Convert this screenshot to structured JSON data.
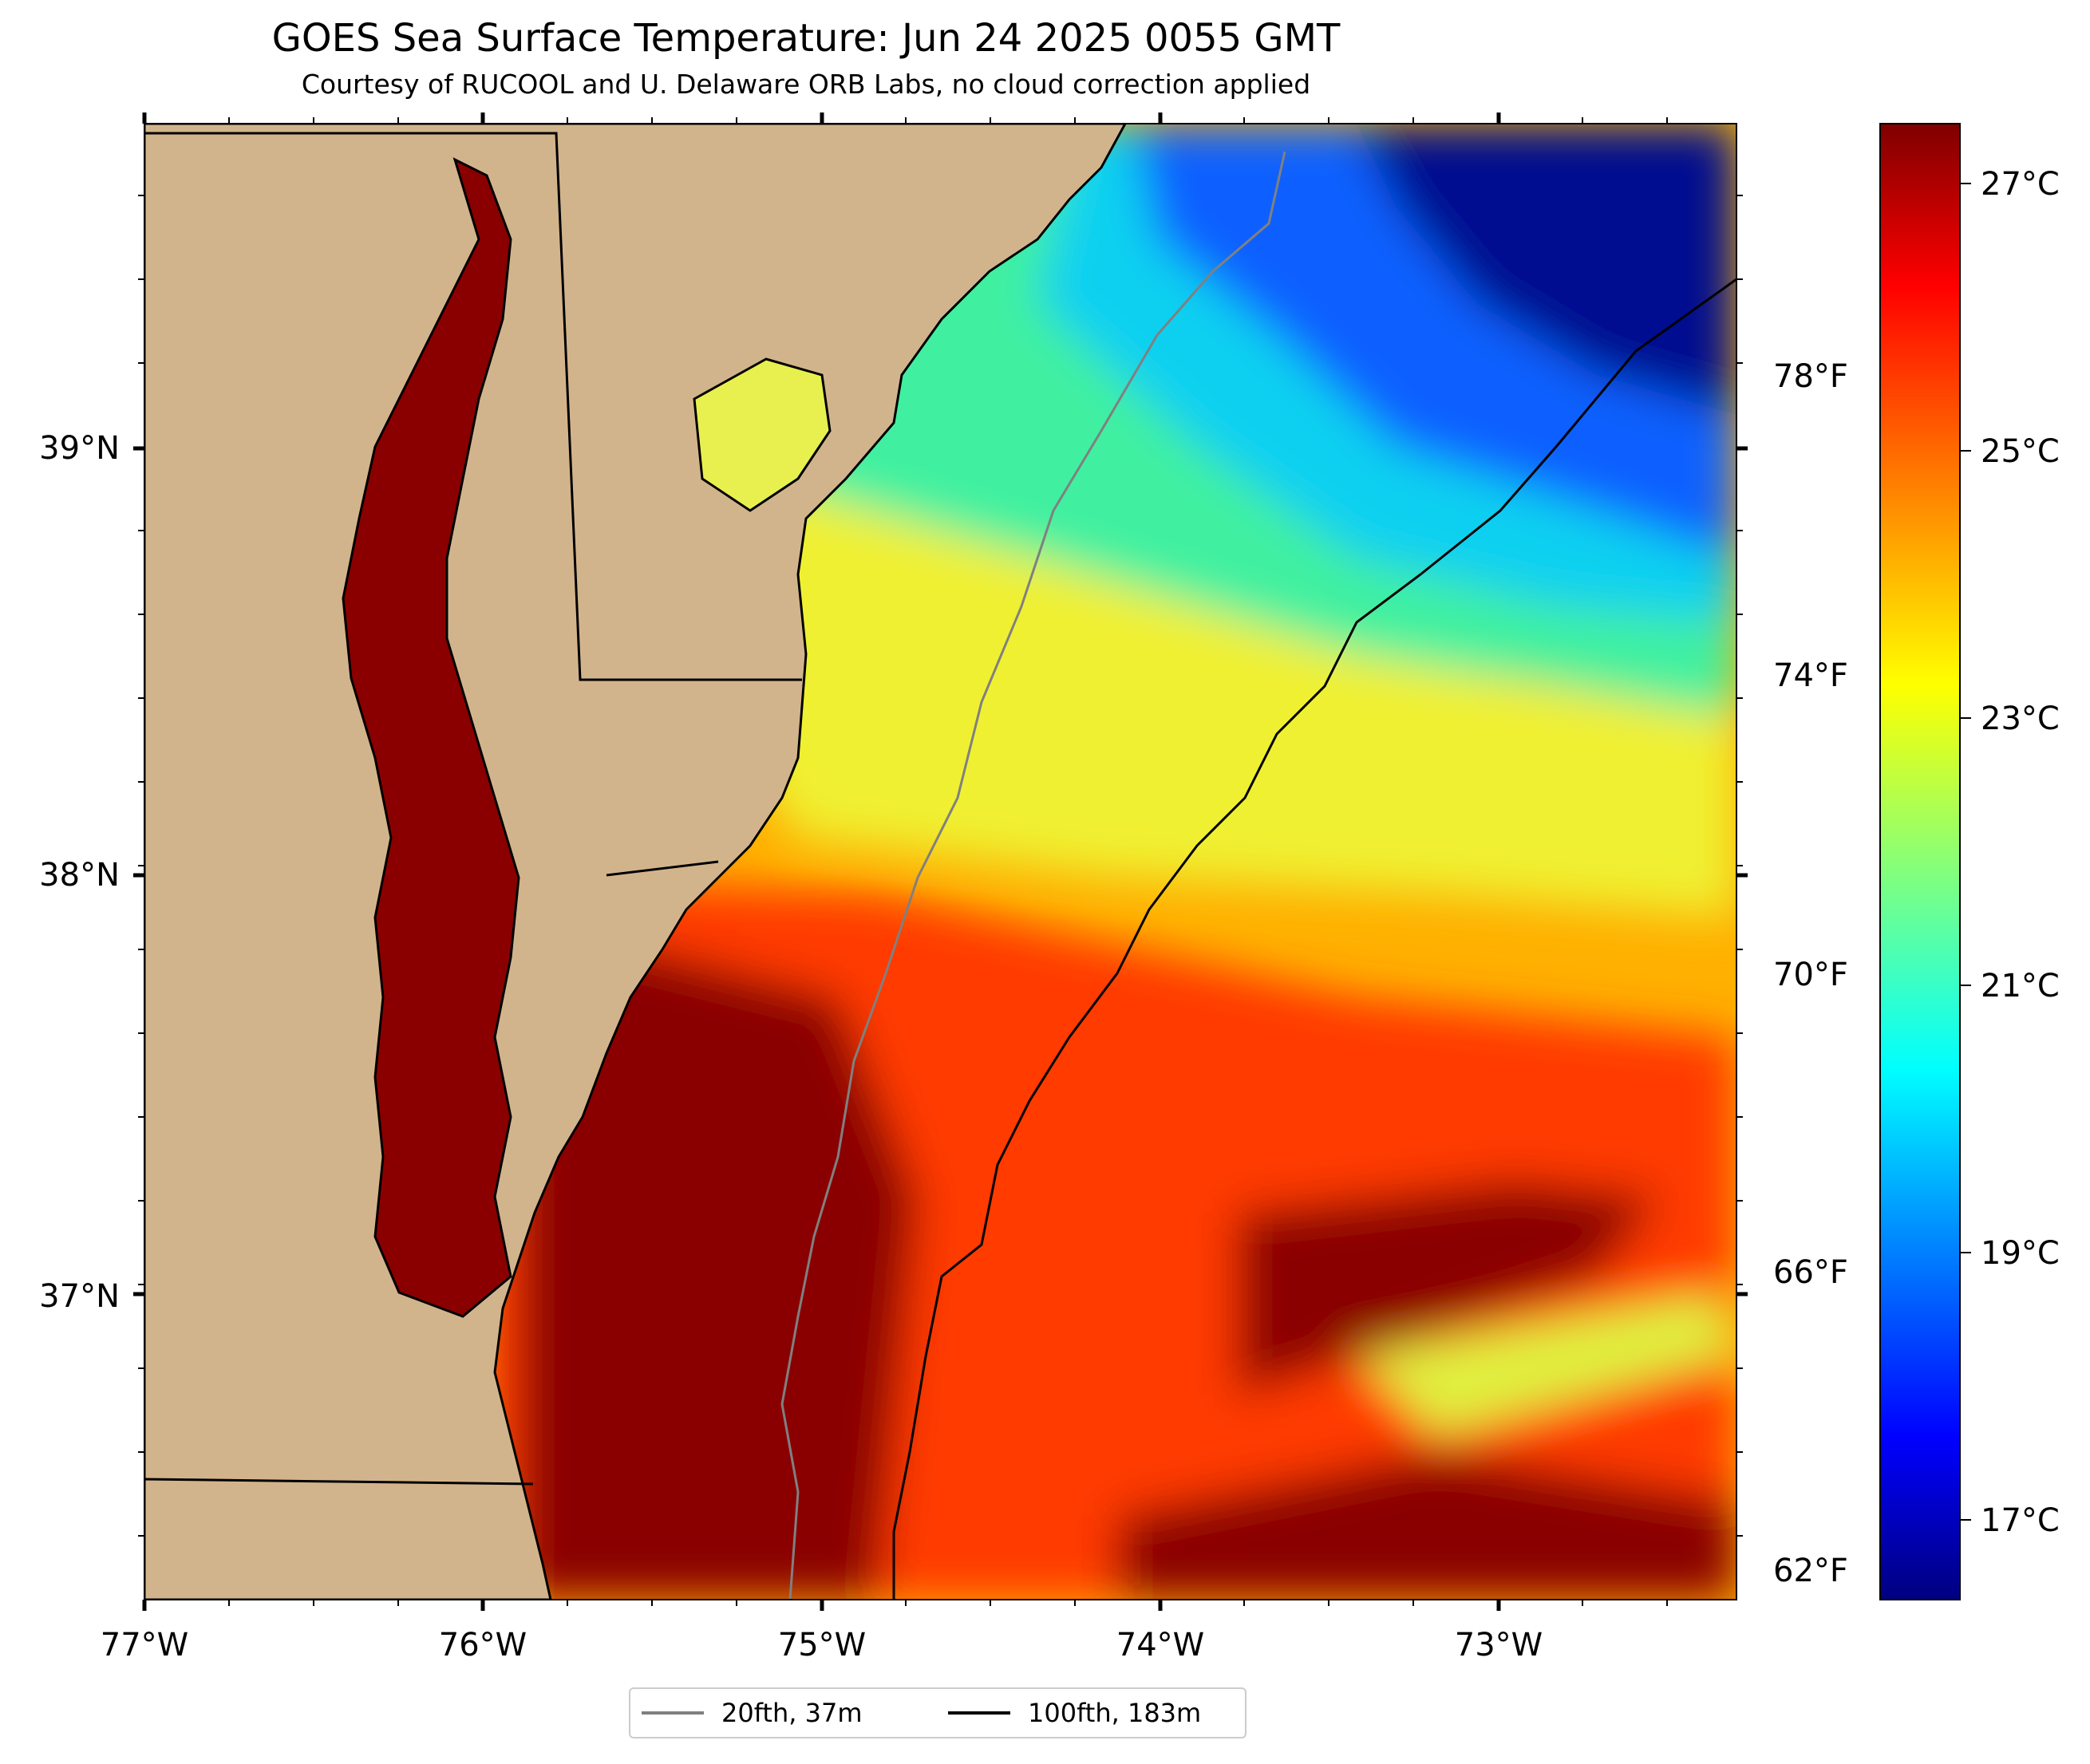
{
  "map": {
    "title": "GOES Sea Surface Temperature: Jun 24 2025 0055 GMT",
    "subtitle": "Courtesy of RUCOOL and U. Delaware ORB Labs, no cloud correction applied",
    "lon_labels": [
      "77°W",
      "76°W",
      "75°W",
      "74°W",
      "73°W"
    ],
    "lat_labels": [
      "39°N",
      "38°N",
      "37°N"
    ],
    "extent": {
      "lon_min": -77.0,
      "lon_max": -72.3,
      "lat_min": 36.24,
      "lat_max": 39.76
    },
    "colors": {
      "land": "#d2b48c",
      "border": "#000000",
      "isobath_20fth": "#808080",
      "isobath_100fth": "#000000"
    }
  },
  "colorbar": {
    "celsius_labels": [
      "27°C",
      "25°C",
      "23°C",
      "21°C",
      "19°C",
      "17°C"
    ],
    "fahrenheit_labels": [
      "78°F",
      "74°F",
      "70°F",
      "66°F",
      "62°F"
    ],
    "range_c": [
      16.3,
      27.4
    ],
    "colormap": "jet"
  },
  "legend": {
    "items": [
      {
        "label": "20fth, 37m",
        "color": "#808080"
      },
      {
        "label": "100fth, 183m",
        "color": "#000000"
      }
    ]
  }
}
